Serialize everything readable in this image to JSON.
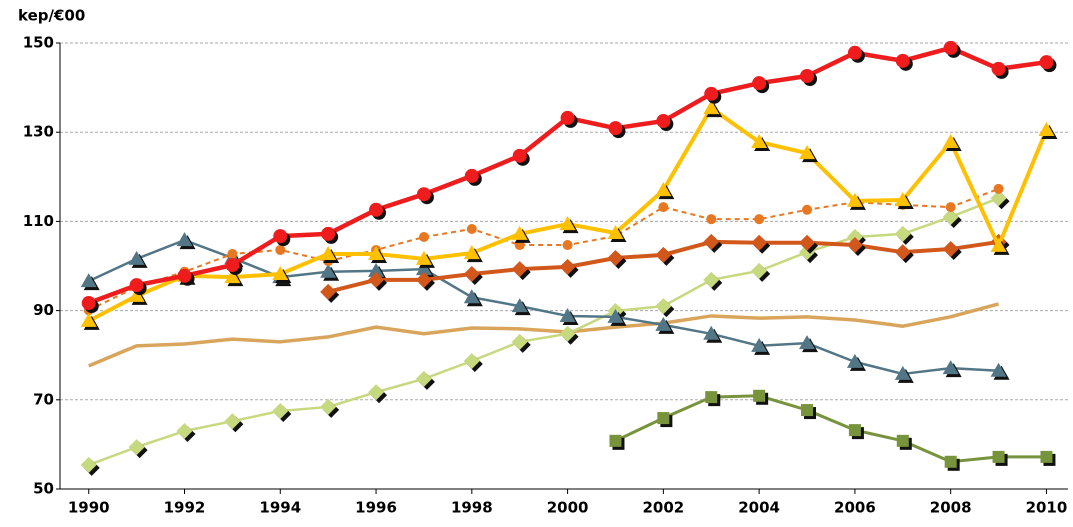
{
  "chart_data": {
    "type": "line",
    "y_label": "kep/€00",
    "x": [
      1990,
      1991,
      1992,
      1993,
      1994,
      1995,
      1996,
      1997,
      1998,
      1999,
      2000,
      2001,
      2002,
      2003,
      2004,
      2005,
      2006,
      2007,
      2008,
      2009,
      2010
    ],
    "xlim": [
      1989.4,
      2010.45
    ],
    "xticks": [
      1990,
      1992,
      1994,
      1996,
      1998,
      2000,
      2002,
      2004,
      2006,
      2008,
      2010
    ],
    "ylim": [
      50,
      150
    ],
    "yticks": [
      50,
      70,
      90,
      110,
      130,
      150
    ],
    "grid": true,
    "series": [
      {
        "color": "#d9a55c",
        "marker": null,
        "line_width": 3.5,
        "dashed": false,
        "values": [
          77.6,
          82.1,
          82.5,
          83.6,
          83.0,
          84.1,
          86.3,
          84.8,
          86.1,
          85.9,
          85.2,
          86.3,
          87.2,
          88.8,
          88.3,
          88.6,
          87.9,
          86.5,
          88.6,
          91.5,
          null
        ]
      },
      {
        "color": "#c6d97e",
        "marker": "diamond",
        "line_width": 2.5,
        "dashed": false,
        "values": [
          55.4,
          59.4,
          63.0,
          65.2,
          67.5,
          68.4,
          71.7,
          74.7,
          78.7,
          83.0,
          84.8,
          89.9,
          91.0,
          96.9,
          98.9,
          103.1,
          106.5,
          107.2,
          111.0,
          115.2,
          null
        ]
      },
      {
        "color": "#537687",
        "marker": "triangle",
        "line_width": 2.5,
        "dashed": false,
        "values": [
          96.6,
          101.6,
          105.8,
          101.8,
          97.5,
          98.7,
          98.9,
          99.3,
          93.0,
          91.0,
          88.8,
          88.6,
          86.8,
          84.8,
          82.1,
          82.7,
          78.5,
          75.8,
          77.1,
          76.5,
          null
        ]
      },
      {
        "color": "#e87722",
        "marker": "circle-small",
        "line_width": 2,
        "dashed": true,
        "values": [
          90.1,
          95.3,
          98.7,
          102.7,
          103.6,
          101.1,
          103.6,
          106.5,
          108.3,
          104.7,
          104.7,
          106.7,
          113.2,
          110.5,
          110.5,
          112.6,
          114.3,
          113.7,
          113.2,
          117.3,
          null
        ]
      },
      {
        "color": "#d2571b",
        "marker": "diamond",
        "line_width": 4,
        "dashed": false,
        "values": [
          null,
          null,
          null,
          null,
          null,
          94.2,
          96.9,
          96.9,
          98.2,
          99.3,
          99.8,
          101.8,
          102.5,
          105.4,
          105.2,
          105.2,
          104.7,
          103.1,
          103.8,
          105.4,
          null
        ]
      },
      {
        "color": "#77933c",
        "marker": "square",
        "line_width": 3,
        "dashed": false,
        "values": [
          null,
          null,
          null,
          null,
          null,
          null,
          null,
          null,
          null,
          null,
          null,
          60.8,
          65.9,
          70.6,
          70.9,
          67.7,
          63.2,
          60.8,
          56.1,
          57.2,
          57.2
        ]
      },
      {
        "color": "#ffc000",
        "marker": "triangle",
        "line_width": 4,
        "dashed": false,
        "values": [
          87.7,
          93.3,
          97.8,
          97.5,
          98.2,
          102.7,
          102.7,
          101.6,
          102.9,
          107.2,
          109.4,
          107.4,
          117.0,
          135.4,
          127.8,
          125.3,
          114.6,
          114.8,
          127.8,
          104.5,
          130.5
        ]
      },
      {
        "color": "#ee1c1c",
        "marker": "circle",
        "line_width": 4.5,
        "dashed": false,
        "values": [
          91.7,
          95.7,
          97.8,
          100.2,
          106.7,
          107.2,
          112.6,
          116.1,
          120.2,
          124.7,
          133.2,
          130.9,
          132.5,
          138.6,
          141.0,
          142.6,
          147.8,
          146.0,
          148.9,
          144.2,
          145.7
        ]
      }
    ]
  }
}
